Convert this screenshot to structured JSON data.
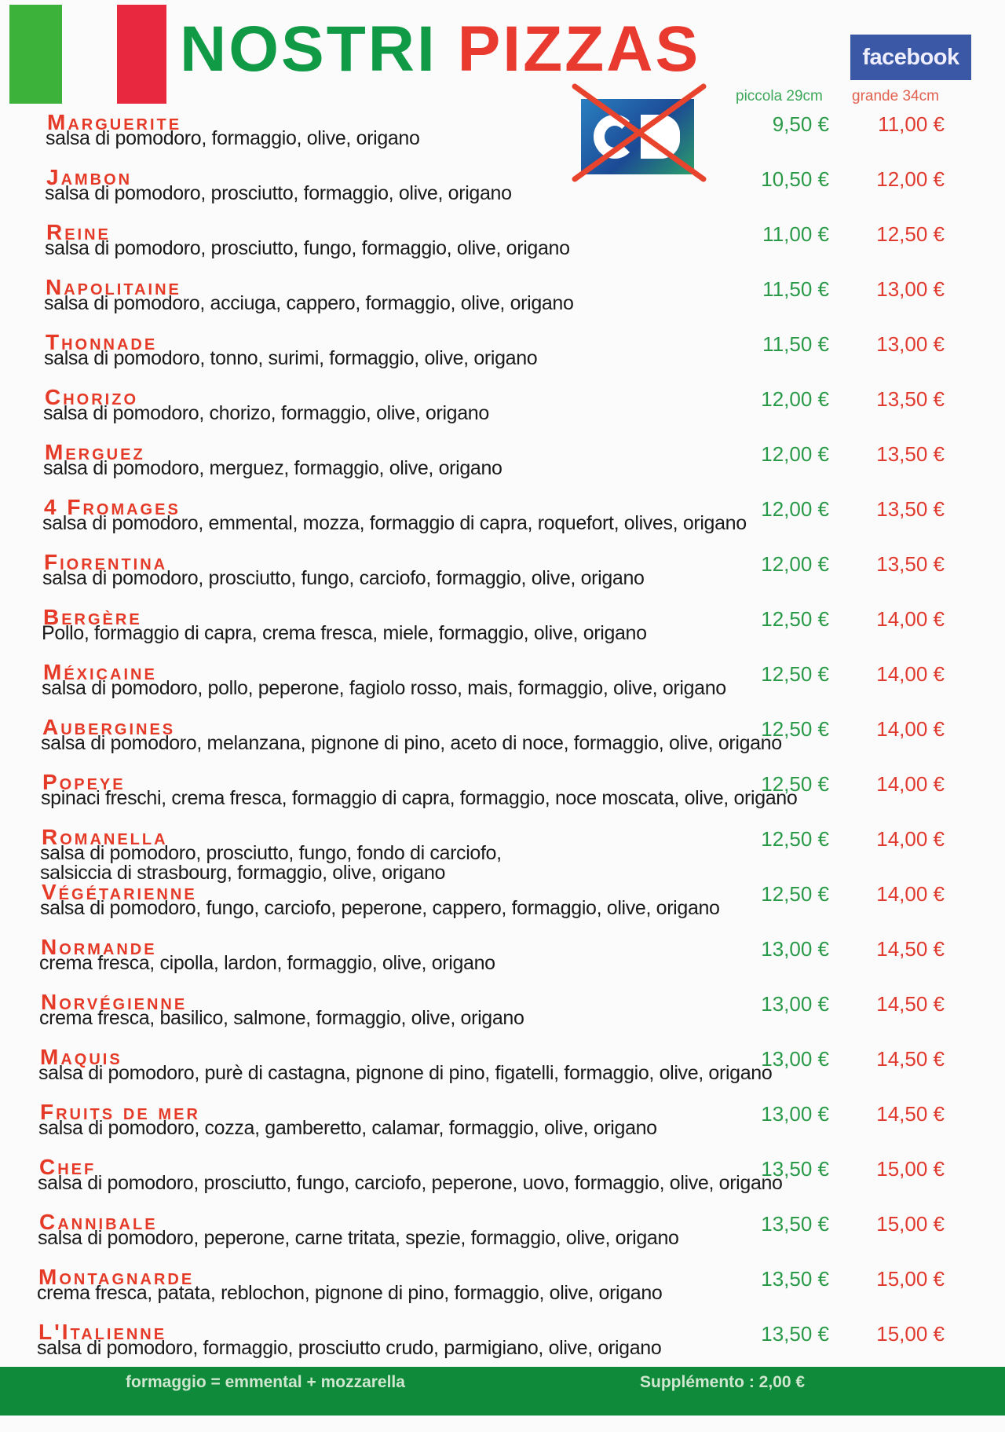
{
  "header": {
    "title_part1": "NOSTRI",
    "title_part2": "PIZZAS",
    "facebook_label": "facebook",
    "size_small": "piccola 29cm",
    "size_large": "grande 34cm"
  },
  "colors": {
    "green": "#109a46",
    "red": "#e93a2f",
    "facebook": "#3b58a6",
    "footer": "#0f8a3a"
  },
  "icons": {
    "card": "cb-card-crossed-out-icon",
    "flag": "italian-flag-icon"
  },
  "pizzas": [
    {
      "name": "Marguerite",
      "description": "salsa di pomodoro, formaggio, olive, origano",
      "price_small": "9,50 €",
      "price_large": "11,00 €"
    },
    {
      "name": "Jambon",
      "description": "salsa di pomodoro, prosciutto, formaggio, olive, origano",
      "price_small": "10,50 €",
      "price_large": "12,00 €"
    },
    {
      "name": "Reine",
      "description": "salsa di pomodoro, prosciutto, fungo, formaggio, olive, origano",
      "price_small": "11,00 €",
      "price_large": "12,50 €"
    },
    {
      "name": "Napolitaine",
      "description": "salsa di pomodoro, acciuga, cappero, formaggio, olive, origano",
      "price_small": "11,50 €",
      "price_large": "13,00 €"
    },
    {
      "name": "Thonnade",
      "description": "salsa di pomodoro, tonno, surimi, formaggio, olive, origano",
      "price_small": "11,50 €",
      "price_large": "13,00 €"
    },
    {
      "name": "Chorizo",
      "description": "salsa di pomodoro, chorizo, formaggio, olive, origano",
      "price_small": "12,00 €",
      "price_large": "13,50 €"
    },
    {
      "name": "Merguez",
      "description": "salsa di pomodoro, merguez, formaggio, olive, origano",
      "price_small": "12,00 €",
      "price_large": "13,50 €"
    },
    {
      "name": "4 Fromages",
      "description": "salsa di pomodoro, emmental, mozza, formaggio di capra, roquefort, olives, origano",
      "price_small": "12,00 €",
      "price_large": "13,50 €"
    },
    {
      "name": "Fiorentina",
      "description": "salsa di pomodoro, prosciutto, fungo, carciofo, formaggio, olive, origano",
      "price_small": "12,00 €",
      "price_large": "13,50 €"
    },
    {
      "name": "Bergère",
      "description": "Pollo, formaggio di capra, crema fresca, miele, formaggio, olive, origano",
      "price_small": "12,50 €",
      "price_large": "14,00 €"
    },
    {
      "name": "Méxicaine",
      "description": "salsa di pomodoro, pollo, peperone, fagiolo rosso, mais, formaggio, olive, origano",
      "price_small": "12,50 €",
      "price_large": "14,00 €"
    },
    {
      "name": "Aubergines",
      "description": "salsa di pomodoro, melanzana, pignone di pino, aceto di noce, formaggio, olive, origano",
      "price_small": "12,50 €",
      "price_large": "14,00 €"
    },
    {
      "name": "Popeye",
      "description": "spinaci freschi, crema fresca, formaggio di capra, formaggio, noce moscata, olive, origano",
      "price_small": "12,50 €",
      "price_large": "14,00 €"
    },
    {
      "name": "Romanella",
      "description": "salsa di pomodoro, prosciutto, fungo, fondo di carciofo,\nsalsiccia di strasbourg, formaggio, olive, origano",
      "price_small": "12,50 €",
      "price_large": "14,00 €"
    },
    {
      "name": "Végétarienne",
      "description": "salsa di pomodoro, fungo, carciofo, peperone, cappero, formaggio, olive, origano",
      "price_small": "12,50 €",
      "price_large": "14,00 €"
    },
    {
      "name": "Normande",
      "description": "crema fresca, cipolla, lardon, formaggio, olive, origano",
      "price_small": "13,00 €",
      "price_large": "14,50 €"
    },
    {
      "name": "Norvégienne",
      "description": "crema fresca, basilico, salmone, formaggio, olive, origano",
      "price_small": "13,00 €",
      "price_large": "14,50 €"
    },
    {
      "name": "Maquis",
      "description": "salsa di pomodoro, purè di castagna, pignone di pino, figatelli, formaggio, olive, origano",
      "price_small": "13,00 €",
      "price_large": "14,50 €"
    },
    {
      "name": "Fruits de mer",
      "description": "salsa di pomodoro, cozza, gamberetto, calamar, formaggio, olive, origano",
      "price_small": "13,00 €",
      "price_large": "14,50 €"
    },
    {
      "name": "Chef",
      "description": "salsa di pomodoro, prosciutto, fungo, carciofo, peperone, uovo, formaggio, olive, origano",
      "price_small": "13,50 €",
      "price_large": "15,00 €"
    },
    {
      "name": "Cannibale",
      "description": "salsa di pomodoro, peperone, carne tritata, spezie, formaggio, olive, origano",
      "price_small": "13,50 €",
      "price_large": "15,00 €"
    },
    {
      "name": "Montagnarde",
      "description": "crema fresca, patata, reblochon, pignone di pino, formaggio, olive, origano",
      "price_small": "13,50 €",
      "price_large": "15,00 €"
    },
    {
      "name": "L'Italienne",
      "description": "salsa di pomodoro, formaggio, prosciutto crudo, parmigiano, olive, origano",
      "price_small": "13,50 €",
      "price_large": "15,00 €"
    }
  ],
  "footer": {
    "note": "formaggio = emmental + mozzarella",
    "supplement": "Supplémento : 2,00 €"
  }
}
